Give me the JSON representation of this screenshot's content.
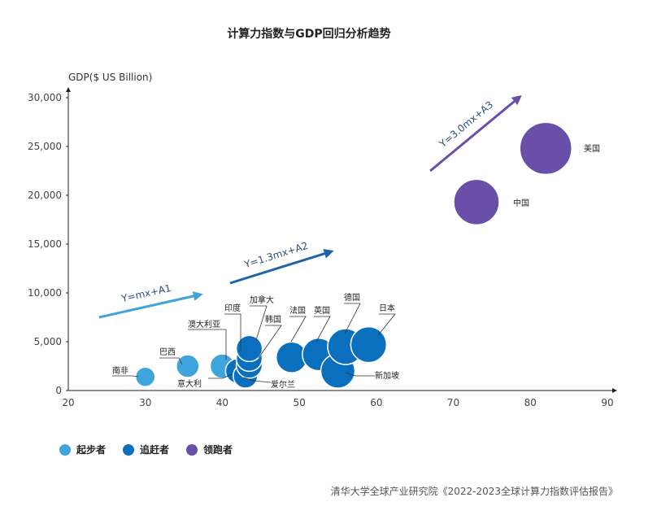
{
  "chart_data": {
    "type": "scatter",
    "title": "计算力指数与GDP回归分析趋势",
    "ylabel": "GDP($ US Billion)",
    "xlabel": "",
    "xlim": [
      20,
      90
    ],
    "ylim": [
      0,
      30000
    ],
    "x_ticks": [
      "20",
      "30",
      "40",
      "50",
      "60",
      "70",
      "80",
      "90"
    ],
    "y_ticks": [
      "0",
      "5,000",
      "10,000",
      "15,000",
      "20,000",
      "25,000",
      "30,000"
    ],
    "legend": [
      "起步者",
      "追赶者",
      "领跑者"
    ],
    "series_colors": {
      "起步者": "#3fa3dc",
      "追赶者": "#0a6fbd",
      "领跑者": "#6a4fa8"
    },
    "points": [
      {
        "name": "南非",
        "x": 30,
        "y": 1400,
        "group": "起步者",
        "r": 12
      },
      {
        "name": "巴西",
        "x": 35.5,
        "y": 2500,
        "group": "起步者",
        "r": 14
      },
      {
        "name": "澳大利亚",
        "x": 40,
        "y": 2500,
        "group": "起步者",
        "r": 15
      },
      {
        "name": "意大利",
        "x": 42,
        "y": 2000,
        "group": "追赶者",
        "r": 15
      },
      {
        "name": "爱尔兰",
        "x": 43,
        "y": 1500,
        "group": "追赶者",
        "r": 15
      },
      {
        "name": "韩国",
        "x": 43.5,
        "y": 2600,
        "group": "追赶者",
        "r": 16
      },
      {
        "name": "印度",
        "x": 43.5,
        "y": 3300,
        "group": "追赶者",
        "r": 16
      },
      {
        "name": "加拿大",
        "x": 43.5,
        "y": 4300,
        "group": "追赶者",
        "r": 16
      },
      {
        "name": "法国",
        "x": 49,
        "y": 3400,
        "group": "追赶者",
        "r": 19
      },
      {
        "name": "英国",
        "x": 52.5,
        "y": 3700,
        "group": "追赶者",
        "r": 20
      },
      {
        "name": "新加坡",
        "x": 55,
        "y": 2000,
        "group": "追赶者",
        "r": 21
      },
      {
        "name": "德国",
        "x": 56,
        "y": 4500,
        "group": "追赶者",
        "r": 22
      },
      {
        "name": "日本",
        "x": 59,
        "y": 4700,
        "group": "追赶者",
        "r": 22
      },
      {
        "name": "中国",
        "x": 73,
        "y": 19300,
        "group": "领跑者",
        "r": 28
      },
      {
        "name": "美国",
        "x": 82,
        "y": 24800,
        "group": "领跑者",
        "r": 32
      }
    ],
    "trend_lines": [
      {
        "label": "Y=mx+A1",
        "color": "#3fa3dc",
        "from": [
          24,
          7500
        ],
        "to": [
          37,
          9800
        ]
      },
      {
        "label": "Y=1.3mx+A2",
        "color": "#1f64a8",
        "from": [
          41,
          11000
        ],
        "to": [
          54,
          14200
        ]
      },
      {
        "label": "Y=3.0mx+A3",
        "color": "#6a4fa8",
        "from": [
          67,
          22500
        ],
        "to": [
          78.5,
          30000
        ]
      }
    ]
  },
  "source": "清华大学全球产业研究院《2022-2023全球计算力指数评估报告》"
}
